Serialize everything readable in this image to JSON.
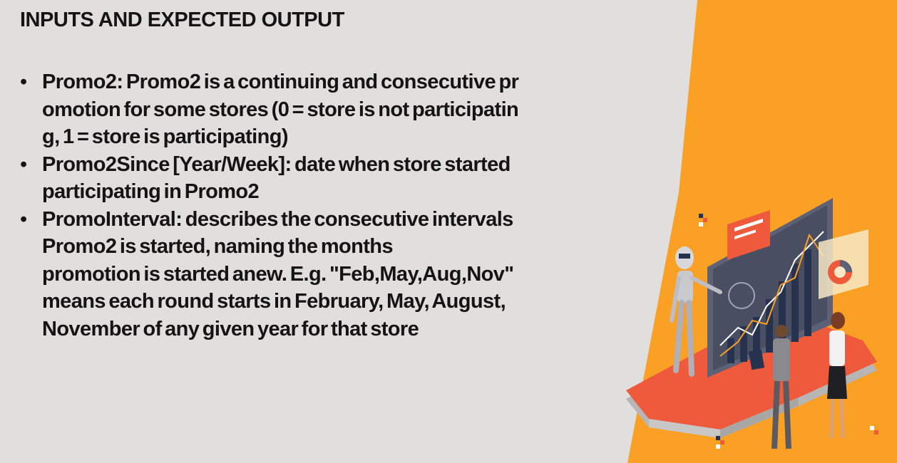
{
  "slide": {
    "title": "INPUTS AND EXPECTED OUTPUT",
    "bullet_glyph": "•",
    "bullets": [
      {
        "lines": [
          "Promo2: Promo2 is a continuing and consecutive pr",
          "omotion for some stores (0 = store is not participatin",
          "g, 1 = store is participating)"
        ]
      },
      {
        "lines": [
          "Promo2Since [Year/Week]: date when store started",
          "participating in Promo2"
        ]
      },
      {
        "lines": [
          "PromoInterval: describes the consecutive intervals",
          "Promo2 is started, naming the months",
          "promotion is started anew. E.g. \"Feb,May,Aug,Nov\"",
          "means each round starts in February, May, August,",
          "November of any given year for that store"
        ]
      }
    ]
  },
  "colors": {
    "background": "#e1dfdd",
    "accent_orange": "#f9a025",
    "platform_red": "#ef5a3c",
    "text": "#141414"
  },
  "icons": {
    "illustration": "ai-robot-data-analytics-illustration"
  }
}
